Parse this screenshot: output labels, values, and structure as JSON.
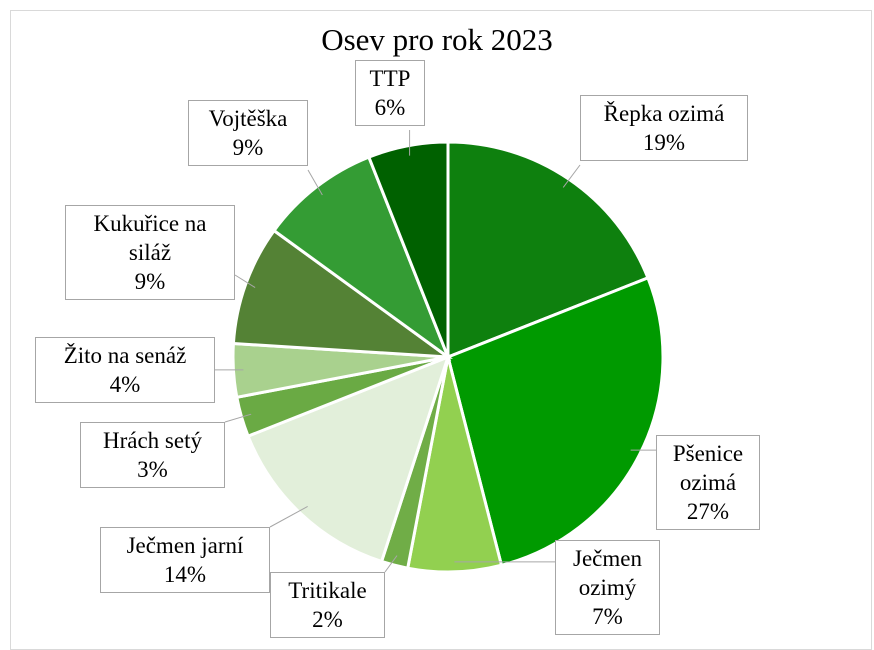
{
  "chart_data": {
    "type": "pie",
    "title": "Osev pro rok 2023",
    "categories": [
      "Řepka ozimá",
      "Pšenice ozimá",
      "Ječmen ozimý",
      "Tritikale",
      "Ječmen jarní",
      "Hrách setý",
      "Žito na senáž",
      "Kukuřice na siláž",
      "Vojtěška",
      "TTP"
    ],
    "values": [
      19,
      27,
      7,
      2,
      14,
      3,
      4,
      9,
      9,
      6
    ],
    "value_labels": [
      "19%",
      "27%",
      "7%",
      "2%",
      "14%",
      "3%",
      "4%",
      "9%",
      "9%",
      "6%"
    ],
    "colors": [
      "#0e800e",
      "#009a00",
      "#92d050",
      "#70ad47",
      "#e2efda",
      "#6aaa44",
      "#a9d18e",
      "#548235",
      "#349c34",
      "#006100"
    ]
  }
}
